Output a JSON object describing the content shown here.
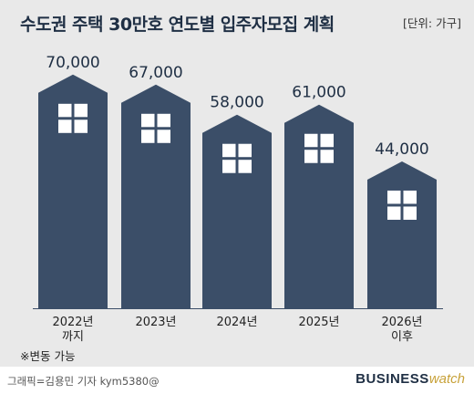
{
  "header": {
    "title": "수도권 주택 30만호 연도별 입주자모집 계획",
    "unit": "[단위: 가구]"
  },
  "chart_data": {
    "type": "bar",
    "categories": [
      "2022년\n까지",
      "2023년",
      "2024년",
      "2025년",
      "2026년\n이후"
    ],
    "values": [
      70000,
      67000,
      58000,
      61000,
      44000
    ],
    "value_labels": [
      "70,000",
      "67,000",
      "58,000",
      "61,000",
      "44,000"
    ],
    "title": "수도권 주택 30만호 연도별 입주자모집 계획",
    "ylabel": "",
    "xlabel": "",
    "unit": "가구",
    "grid": false,
    "bar_color": "#3b4e68",
    "window_color": "#ffffff"
  },
  "footnote": "※변동 가능",
  "footer": {
    "credit": "그래픽=김용민 기자 kym5380@",
    "brand_main": "BUSINESS",
    "brand_accent": "watch"
  }
}
